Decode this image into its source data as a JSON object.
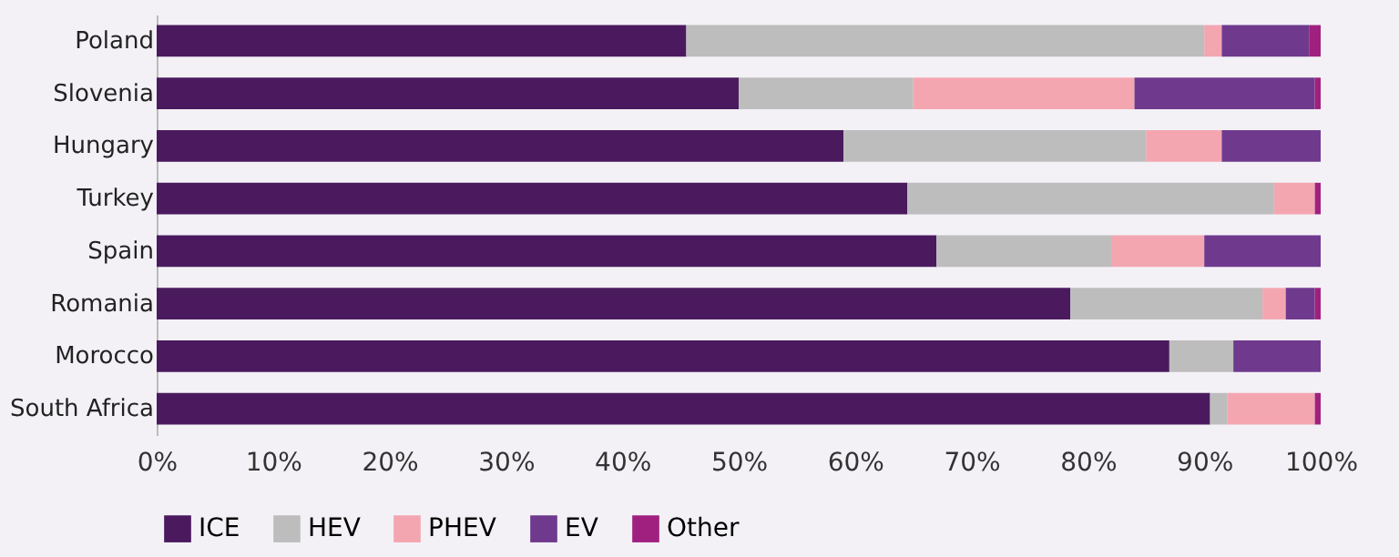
{
  "chart_data": {
    "type": "bar",
    "orientation": "horizontal",
    "stacked": true,
    "categories": [
      "Poland",
      "Slovenia",
      "Hungary",
      "Turkey",
      "Spain",
      "Romania",
      "Morocco",
      "South Africa"
    ],
    "series": [
      {
        "name": "ICE",
        "color": "#4b1a5e",
        "values": [
          45.5,
          50,
          59,
          64.5,
          67,
          78.5,
          87,
          90.5
        ]
      },
      {
        "name": "HEV",
        "color": "#bdbdbd",
        "values": [
          44.5,
          15,
          26,
          31.5,
          15,
          16.5,
          5.5,
          1.5
        ]
      },
      {
        "name": "PHEV",
        "color": "#f4a6b0",
        "values": [
          1.5,
          19,
          6.5,
          3.5,
          8,
          2,
          0,
          7.5
        ]
      },
      {
        "name": "EV",
        "color": "#6f3a8e",
        "values": [
          7.5,
          15.5,
          8.5,
          0,
          10,
          2.5,
          7.5,
          0
        ]
      },
      {
        "name": "Other",
        "color": "#a0207f",
        "values": [
          1,
          0.5,
          0,
          0.5,
          0,
          0.5,
          0,
          0.5
        ]
      }
    ],
    "xlim": [
      0,
      100
    ],
    "xticks": [
      {
        "value": 0,
        "label": "0%"
      },
      {
        "value": 10,
        "label": "10%"
      },
      {
        "value": 20,
        "label": "20%"
      },
      {
        "value": 30,
        "label": "30%"
      },
      {
        "value": 40,
        "label": "40%"
      },
      {
        "value": 50,
        "label": "50%"
      },
      {
        "value": 60,
        "label": "60%"
      },
      {
        "value": 70,
        "label": "70%"
      },
      {
        "value": 80,
        "label": "80%"
      },
      {
        "value": 90,
        "label": "90%"
      },
      {
        "value": 100,
        "label": "100%"
      }
    ],
    "grid": false,
    "legend": "bottom"
  }
}
